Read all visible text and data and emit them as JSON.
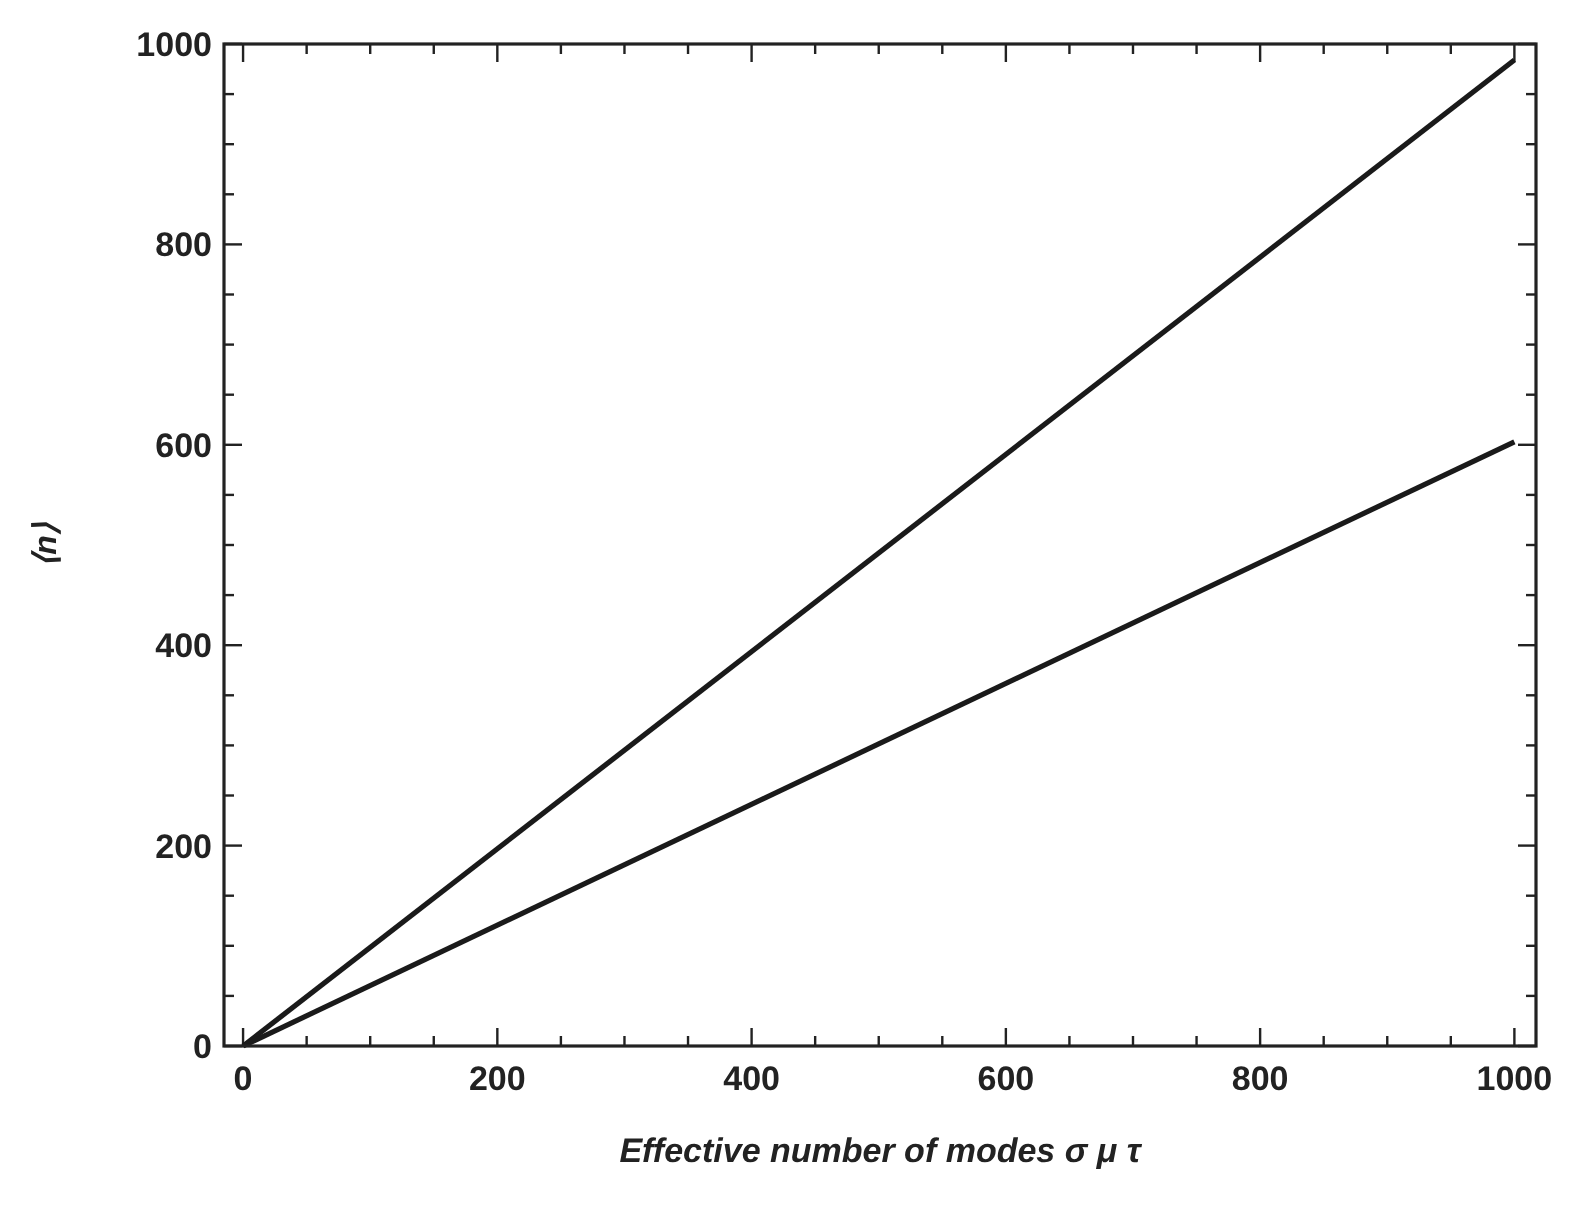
{
  "chart_data": {
    "type": "line",
    "xlabel": "Effective number of modes σ μ τ",
    "ylabel": "⟨n⟩",
    "xlim": [
      -15,
      1017
    ],
    "ylim": [
      0,
      1000
    ],
    "xticks": [
      0,
      {
        "value": 50,
        "label": null
      },
      {
        "value": 100,
        "label": null
      },
      {
        "value": 150,
        "label": null
      },
      200,
      {
        "value": 250,
        "label": null
      },
      {
        "value": 300,
        "label": null
      },
      {
        "value": 350,
        "label": null
      },
      400,
      {
        "value": 450,
        "label": null
      },
      {
        "value": 500,
        "label": null
      },
      {
        "value": 550,
        "label": null
      },
      600,
      {
        "value": 650,
        "label": null
      },
      {
        "value": 700,
        "label": null
      },
      {
        "value": 750,
        "label": null
      },
      800,
      {
        "value": 850,
        "label": null
      },
      {
        "value": 900,
        "label": null
      },
      {
        "value": 950,
        "label": null
      },
      1000
    ],
    "yticks": [
      0,
      {
        "value": 50,
        "label": null
      },
      {
        "value": 100,
        "label": null
      },
      {
        "value": 150,
        "label": null
      },
      200,
      {
        "value": 250,
        "label": null
      },
      {
        "value": 300,
        "label": null
      },
      {
        "value": 350,
        "label": null
      },
      400,
      {
        "value": 450,
        "label": null
      },
      {
        "value": 500,
        "label": null
      },
      {
        "value": 550,
        "label": null
      },
      600,
      {
        "value": 650,
        "label": null
      },
      {
        "value": 700,
        "label": null
      },
      {
        "value": 750,
        "label": null
      },
      800,
      {
        "value": 850,
        "label": null
      },
      {
        "value": 900,
        "label": null
      },
      {
        "value": 950,
        "label": null
      },
      1000
    ],
    "x": [
      0,
      1000
    ],
    "series": [
      {
        "color": "#1a1a1a",
        "values": [
          0,
          984
        ]
      },
      {
        "color": "#1a1a1a",
        "values": [
          0,
          603
        ]
      }
    ]
  }
}
